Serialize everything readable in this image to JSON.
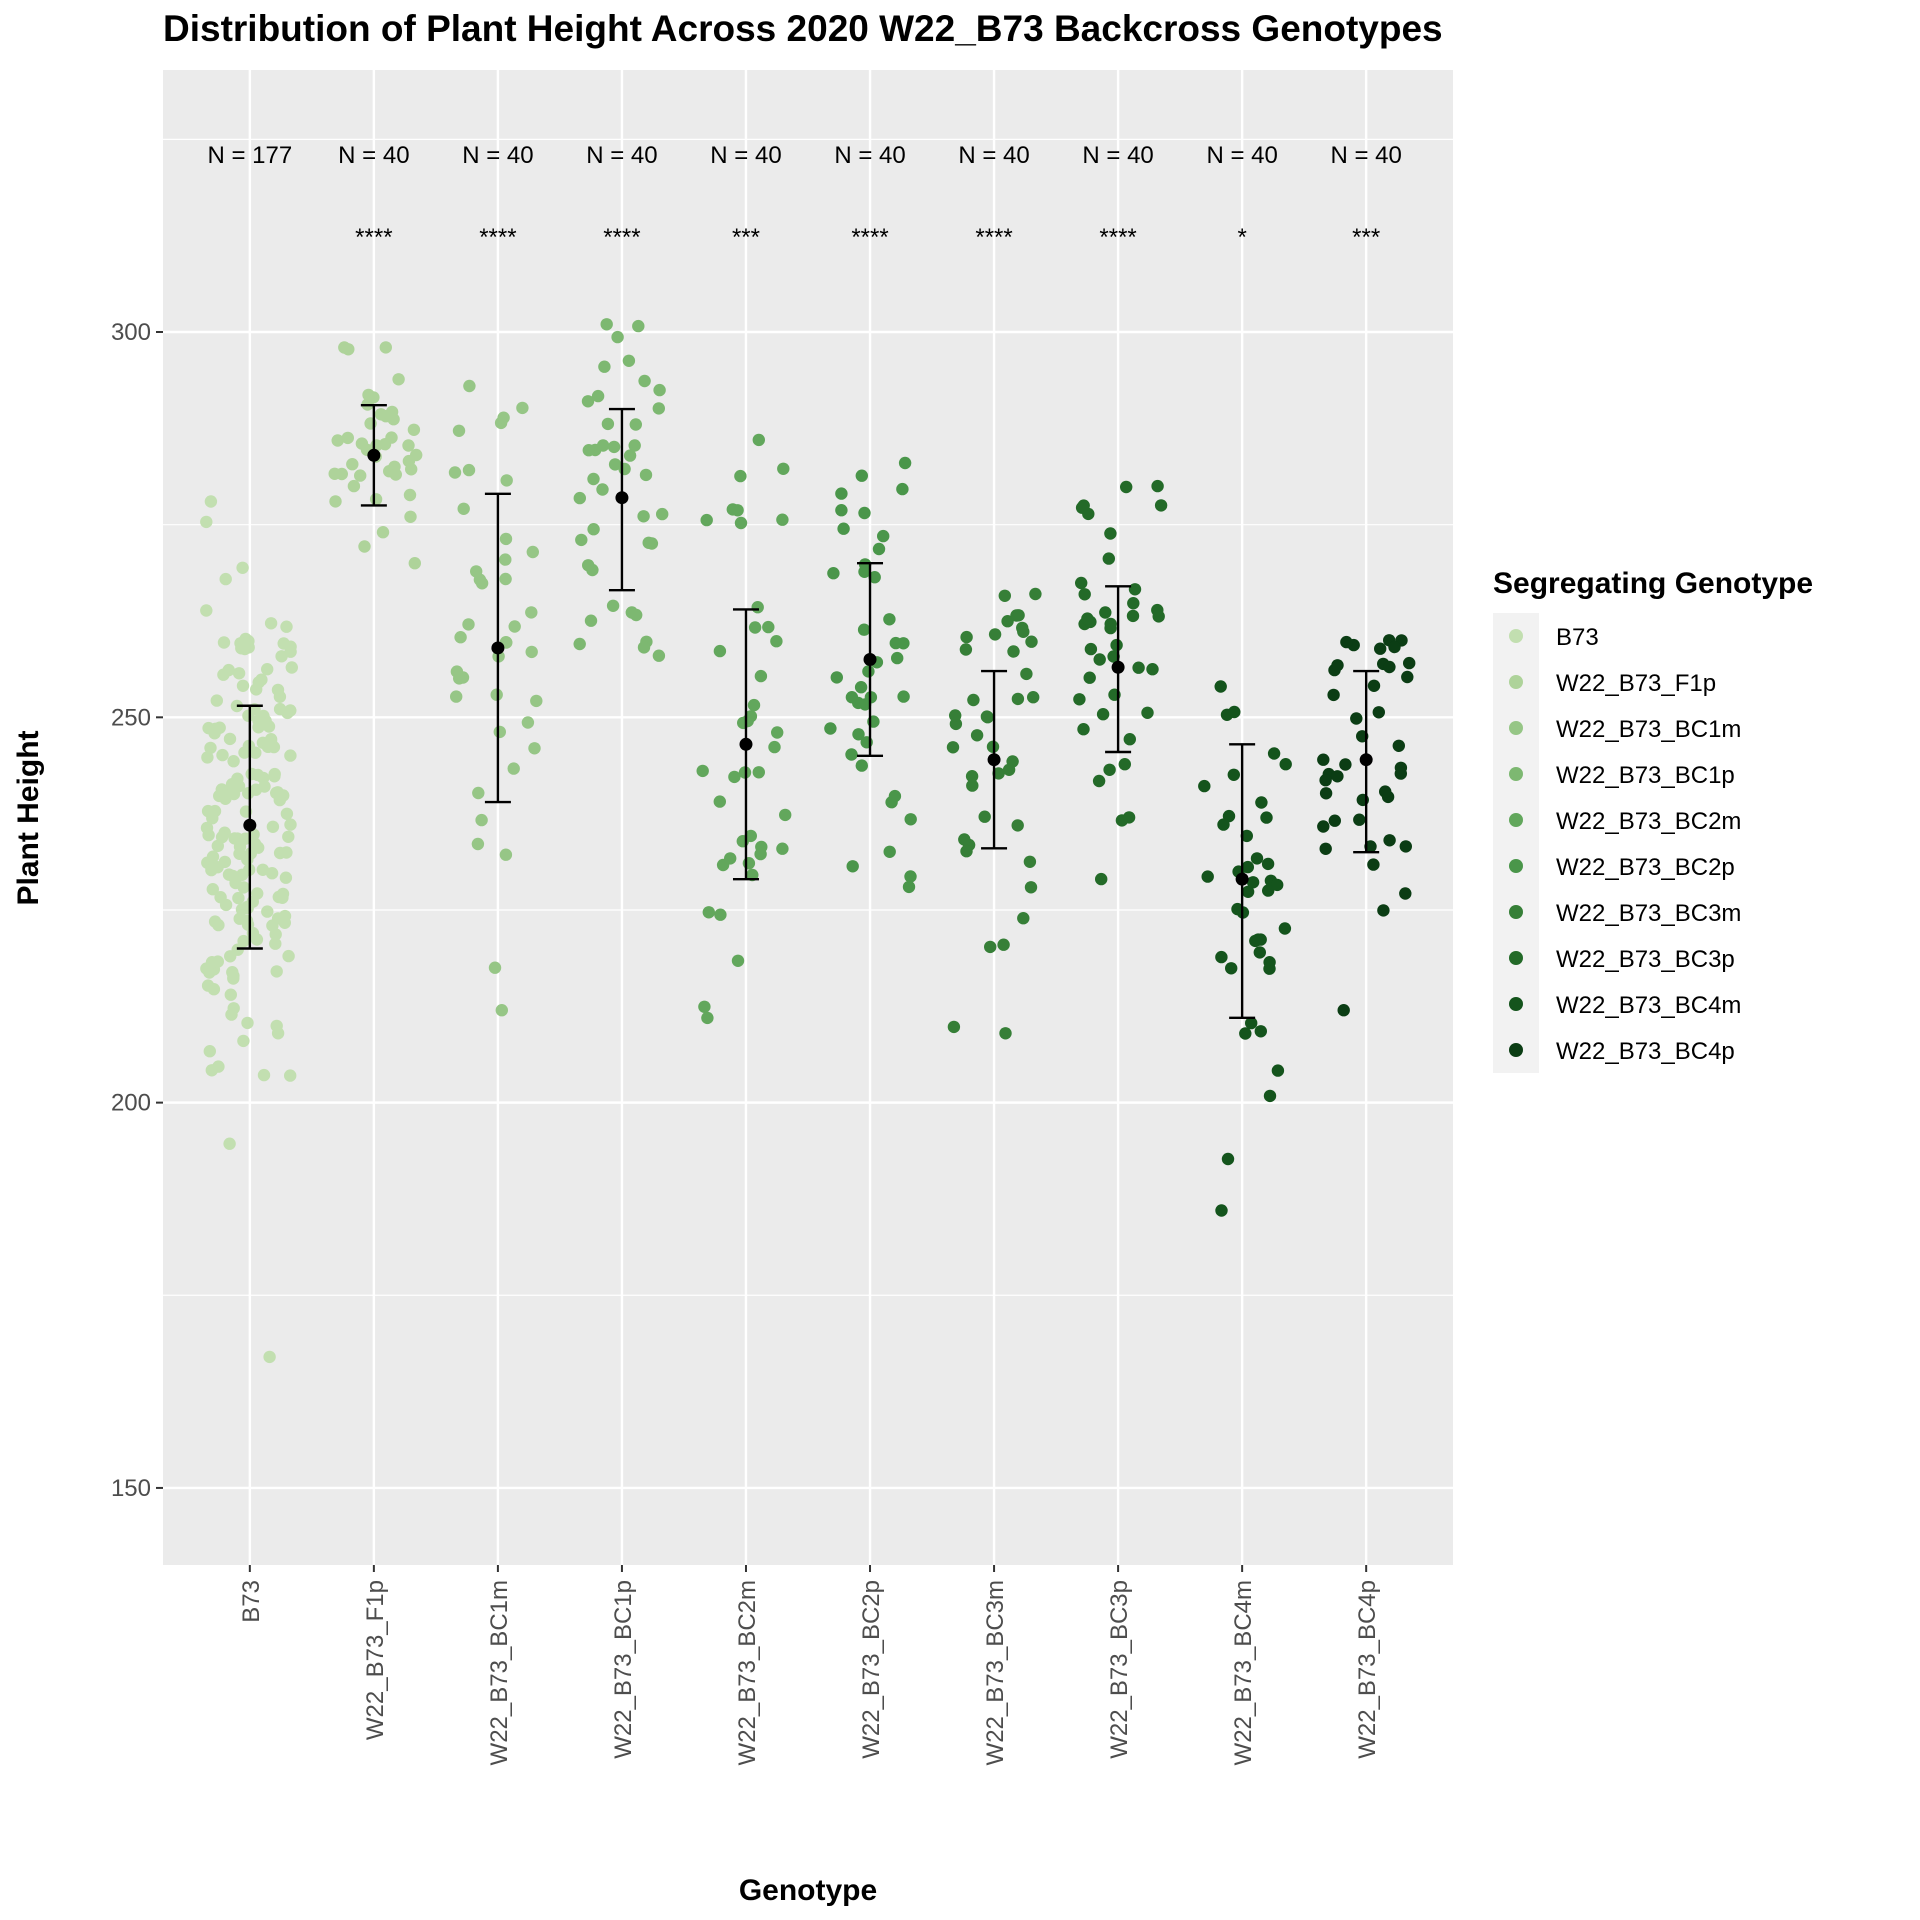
{
  "chart_data": {
    "type": "scatter",
    "title": "Distribution of Plant Height Across 2020 W22_B73 Backcross Genotypes",
    "xlabel": "Genotype",
    "ylabel": "Plant Height",
    "ylim": [
      140,
      334
    ],
    "yticks": [
      150,
      200,
      250,
      300
    ],
    "grid": true,
    "legend": {
      "title": "Segregating Genotype",
      "position": "right"
    },
    "categories": [
      "B73",
      "W22_B73_F1p",
      "W22_B73_BC1m",
      "W22_B73_BC1p",
      "W22_B73_BC2m",
      "W22_B73_BC2p",
      "W22_B73_BC3m",
      "W22_B73_BC3p",
      "W22_B73_BC4m",
      "W22_B73_BC4p"
    ],
    "series": [
      {
        "name": "B73",
        "color": "#c2dfb0",
        "n": 177,
        "sig": "",
        "mean": 236,
        "lower": 220,
        "upper": 251.5,
        "range": [
          167,
          278
        ]
      },
      {
        "name": "W22_B73_F1p",
        "color": "#aed39a",
        "n": 40,
        "sig": "****",
        "mean": 284,
        "lower": 277.5,
        "upper": 290.5,
        "range": [
          270,
          298
        ]
      },
      {
        "name": "W22_B73_BC1m",
        "color": "#96c686",
        "n": 40,
        "sig": "****",
        "mean": 259,
        "lower": 239,
        "upper": 279,
        "range": [
          212,
          293
        ]
      },
      {
        "name": "W22_B73_BC1p",
        "color": "#7db871",
        "n": 40,
        "sig": "****",
        "mean": 278.5,
        "lower": 266.5,
        "upper": 290,
        "range": [
          258,
          301
        ]
      },
      {
        "name": "W22_B73_BC2m",
        "color": "#62a75c",
        "n": 40,
        "sig": "***",
        "mean": 246.5,
        "lower": 229,
        "upper": 264,
        "range": [
          211,
          286
        ]
      },
      {
        "name": "W22_B73_BC2p",
        "color": "#4a964a",
        "n": 40,
        "sig": "****",
        "mean": 257.5,
        "lower": 245,
        "upper": 270,
        "range": [
          228,
          283
        ]
      },
      {
        "name": "W22_B73_BC3m",
        "color": "#367f37",
        "n": 40,
        "sig": "****",
        "mean": 244.5,
        "lower": 233,
        "upper": 256,
        "range": [
          209,
          266
        ]
      },
      {
        "name": "W22_B73_BC3p",
        "color": "#236a28",
        "n": 40,
        "sig": "****",
        "mean": 256.5,
        "lower": 245.5,
        "upper": 267,
        "range": [
          229,
          280
        ]
      },
      {
        "name": "W22_B73_BC4m",
        "color": "#14541c",
        "n": 40,
        "sig": "*",
        "mean": 229,
        "lower": 211,
        "upper": 246.5,
        "range": [
          186,
          254
        ]
      },
      {
        "name": "W22_B73_BC4p",
        "color": "#0b3d14",
        "n": 40,
        "sig": "***",
        "mean": 244.5,
        "lower": 232.5,
        "upper": 256,
        "range": [
          212,
          260
        ]
      }
    ]
  }
}
